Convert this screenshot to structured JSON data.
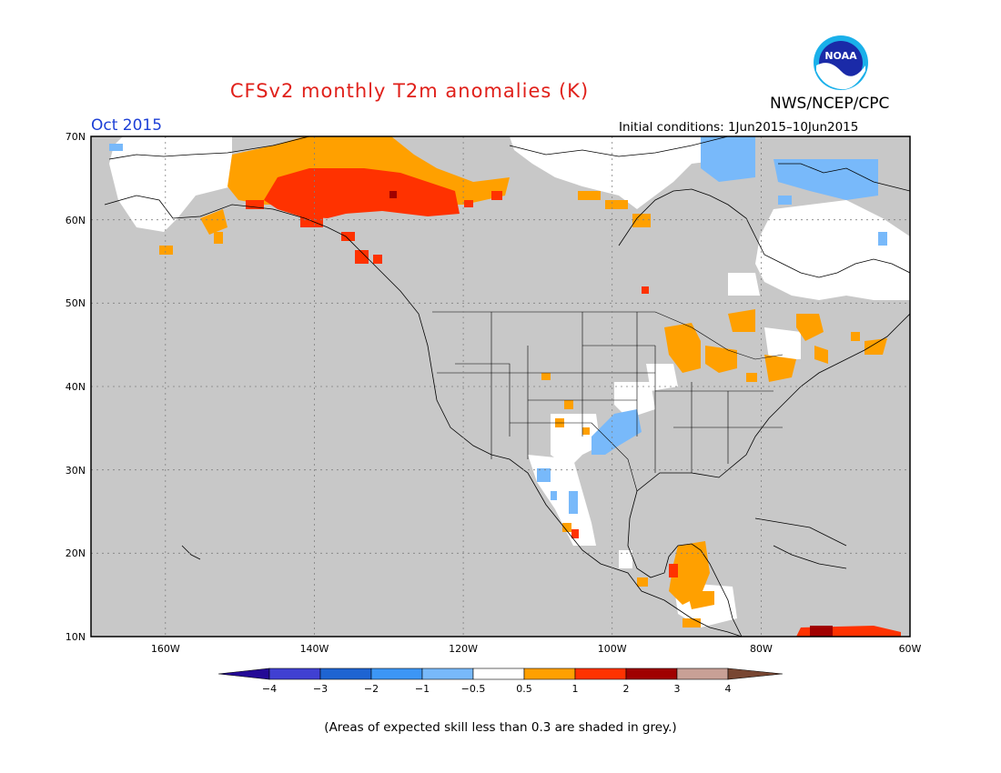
{
  "title": "CFSv2 monthly T2m anomalies (K)",
  "agency": "NWS/NCEP/CPC",
  "logo_text": "NOAA",
  "period": "Oct 2015",
  "initial_conditions": "Initial conditions:  1Jun2015–10Jun2015",
  "footnote": "(Areas of expected skill less than 0.3 are shaded in grey.)",
  "map": {
    "projection": "lat-lon",
    "lon_range": [
      -170,
      -60
    ],
    "lat_range": [
      10,
      70
    ],
    "lat_ticks": [
      "70N",
      "60N",
      "50N",
      "40N",
      "30N",
      "20N",
      "10N"
    ],
    "lon_ticks": [
      "160W",
      "140W",
      "120W",
      "100W",
      "80W",
      "60W"
    ],
    "grid": true,
    "land_color": "#c8c8c8",
    "no_skill_color": "#c8c8c8"
  },
  "legend": {
    "ticks": [
      "−4",
      "−3",
      "−2",
      "−1",
      "−0.5",
      "0.5",
      "1",
      "2",
      "3",
      "4"
    ],
    "colors": [
      "#240a96",
      "#4040d2",
      "#1e64d2",
      "#3c96f5",
      "#78b9fa",
      "#ffffff",
      "#ffa000",
      "#ff3200",
      "#a00000",
      "#c8a096",
      "#784632"
    ]
  }
}
